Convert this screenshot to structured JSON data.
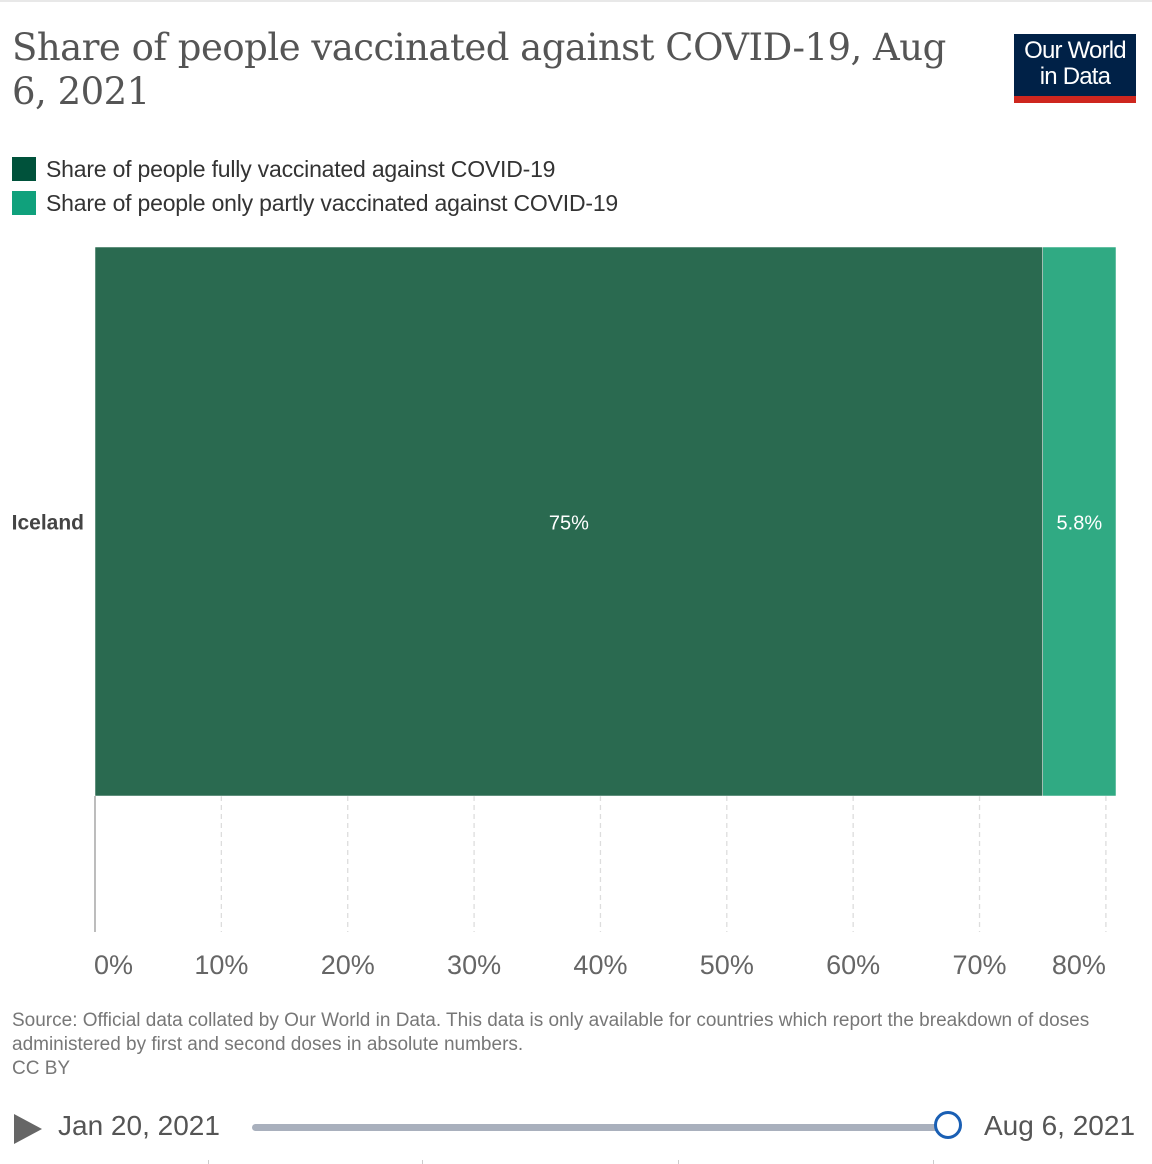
{
  "header": {
    "title": "Share of people vaccinated against COVID-19, Aug 6, 2021",
    "logo_line1": "Our World",
    "logo_line2": "in Data"
  },
  "legend": [
    {
      "label": "Share of people fully vaccinated against COVID-19",
      "color": "#00523b"
    },
    {
      "label": "Share of people only partly vaccinated against COVID-19",
      "color": "#10a17c"
    }
  ],
  "chart_data": {
    "type": "bar",
    "orientation": "horizontal",
    "stacked": true,
    "categories": [
      "Iceland"
    ],
    "series": [
      {
        "name": "Share of people fully vaccinated against COVID-19",
        "values": [
          75
        ],
        "labels": [
          "75%"
        ],
        "color": "#2a6a50"
      },
      {
        "name": "Share of people only partly vaccinated against COVID-19",
        "values": [
          5.8
        ],
        "labels": [
          "5.8%"
        ],
        "color": "#30aa83"
      }
    ],
    "xlim": [
      0,
      80.8
    ],
    "xticks": [
      0,
      10,
      20,
      30,
      40,
      50,
      60,
      70,
      80
    ],
    "xtick_labels": [
      "0%",
      "10%",
      "20%",
      "30%",
      "40%",
      "50%",
      "60%",
      "70%",
      "80%"
    ],
    "grid": true
  },
  "footer": {
    "source": "Source: Official data collated by Our World in Data. This data is only available for countries which report the breakdown of doses administered by first and second doses in absolute numbers.",
    "license": "CC BY"
  },
  "timeline": {
    "start_label": "Jan 20, 2021",
    "end_label": "Aug 6, 2021",
    "position": 1.0
  }
}
